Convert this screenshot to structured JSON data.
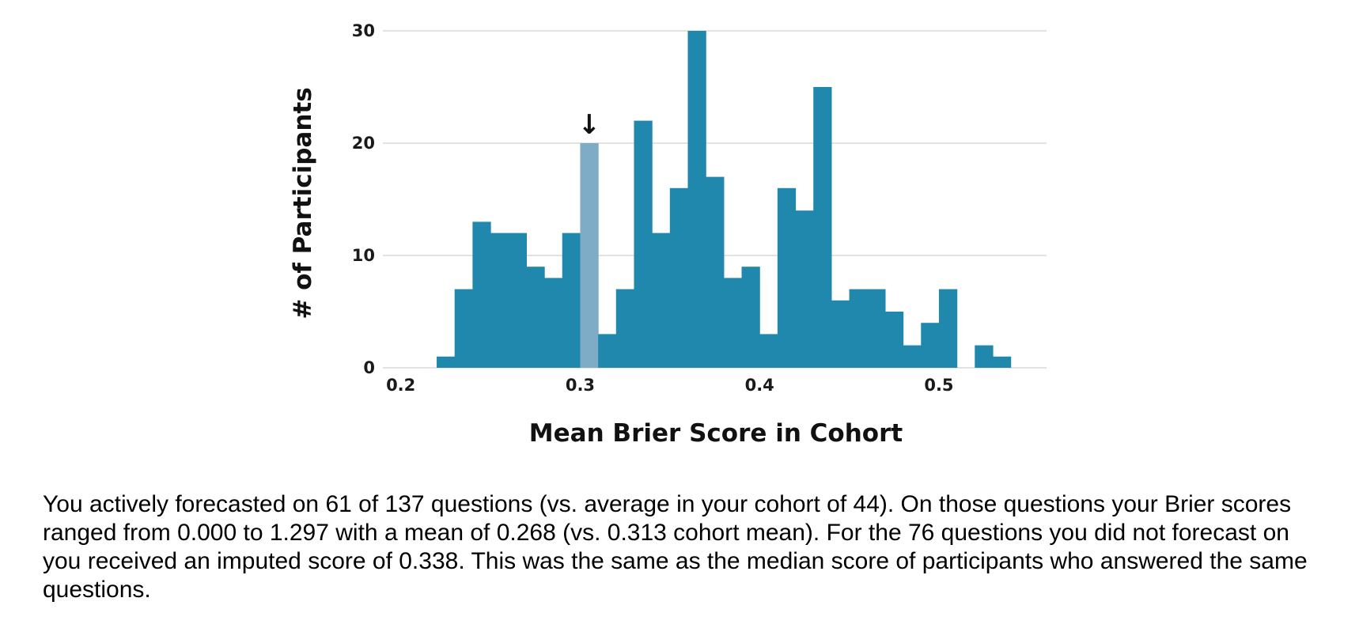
{
  "chart_data": {
    "type": "bar",
    "xlabel": "Mean Brier Score in Cohort",
    "ylabel": "# of Participants",
    "xlim": [
      0.19,
      0.56
    ],
    "ylim": [
      0,
      30
    ],
    "x_ticks": [
      "0.2",
      "0.3",
      "0.4",
      "0.5"
    ],
    "y_ticks": [
      "0",
      "10",
      "20",
      "30"
    ],
    "bin_width": 0.01,
    "bin_starts": [
      0.22,
      0.23,
      0.24,
      0.25,
      0.26,
      0.27,
      0.28,
      0.29,
      0.3,
      0.31,
      0.32,
      0.33,
      0.34,
      0.35,
      0.36,
      0.37,
      0.38,
      0.39,
      0.4,
      0.41,
      0.42,
      0.43,
      0.44,
      0.45,
      0.46,
      0.47,
      0.48,
      0.49,
      0.5,
      0.51,
      0.52,
      0.53
    ],
    "values": [
      1,
      7,
      13,
      12,
      12,
      9,
      8,
      12,
      20,
      3,
      7,
      22,
      12,
      16,
      30,
      17,
      8,
      9,
      3,
      16,
      14,
      25,
      6,
      7,
      7,
      5,
      2,
      4,
      7,
      0,
      2,
      1
    ],
    "highlight_bin_start": 0.3,
    "marker_symbol": "↓",
    "grid": true,
    "colors": {
      "bar": "#2088ad",
      "highlight": "#7eabc5",
      "grid": "#d9d9d9"
    }
  },
  "summary_text": "You actively forecasted on 61 of 137 questions (vs. average in your cohort of 44). On those questions your Brier scores ranged from 0.000 to 1.297 with a mean of 0.268 (vs. 0.313 cohort mean). For the 76 questions you did not forecast on you received an imputed score of 0.338. This was the same as the median score of participants who answered the same questions."
}
